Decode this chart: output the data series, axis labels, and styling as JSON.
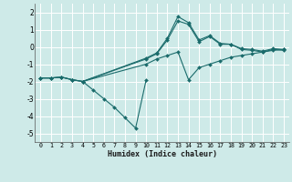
{
  "xlabel": "Humidex (Indice chaleur)",
  "ylabel": "",
  "bg_color": "#ceeae8",
  "grid_color": "#ffffff",
  "line_color": "#1a6b6b",
  "xlim": [
    -0.5,
    23.5
  ],
  "ylim": [
    -5.5,
    2.5
  ],
  "xticks": [
    0,
    1,
    2,
    3,
    4,
    5,
    6,
    7,
    8,
    9,
    10,
    11,
    12,
    13,
    14,
    15,
    16,
    17,
    18,
    19,
    20,
    21,
    22,
    23
  ],
  "yticks": [
    -5,
    -4,
    -3,
    -2,
    -1,
    0,
    1,
    2
  ],
  "series": [
    {
      "x": [
        0,
        1,
        2,
        3,
        4,
        10,
        11,
        12,
        13,
        14,
        15,
        16,
        17,
        18,
        19,
        20,
        21,
        22,
        23
      ],
      "y": [
        -1.8,
        -1.8,
        -1.75,
        -1.9,
        -2.0,
        -0.7,
        -0.4,
        0.4,
        1.5,
        1.3,
        0.3,
        0.6,
        0.15,
        0.15,
        -0.15,
        -0.2,
        -0.3,
        -0.15,
        -0.2
      ]
    },
    {
      "x": [
        0,
        1,
        2,
        3,
        4,
        10,
        11,
        12,
        13,
        14,
        15,
        16,
        17,
        18,
        19,
        20,
        21,
        22,
        23
      ],
      "y": [
        -1.8,
        -1.8,
        -1.75,
        -1.9,
        -2.0,
        -0.65,
        -0.35,
        0.5,
        1.75,
        1.4,
        0.4,
        0.65,
        0.2,
        0.15,
        -0.1,
        -0.15,
        -0.25,
        -0.1,
        -0.15
      ]
    },
    {
      "x": [
        0,
        1,
        2,
        3,
        4,
        10,
        11,
        12,
        13,
        14,
        15,
        16,
        17,
        18,
        19,
        20,
        21,
        22,
        23
      ],
      "y": [
        -1.8,
        -1.8,
        -1.75,
        -1.9,
        -2.0,
        -1.0,
        -0.7,
        -0.5,
        -0.3,
        -1.9,
        -1.2,
        -1.0,
        -0.8,
        -0.6,
        -0.5,
        -0.4,
        -0.3,
        -0.2,
        -0.15
      ]
    },
    {
      "x": [
        4,
        5,
        6,
        7,
        8,
        9,
        10
      ],
      "y": [
        -2.0,
        -2.5,
        -3.0,
        -3.5,
        -4.1,
        -4.7,
        -1.9
      ]
    }
  ]
}
